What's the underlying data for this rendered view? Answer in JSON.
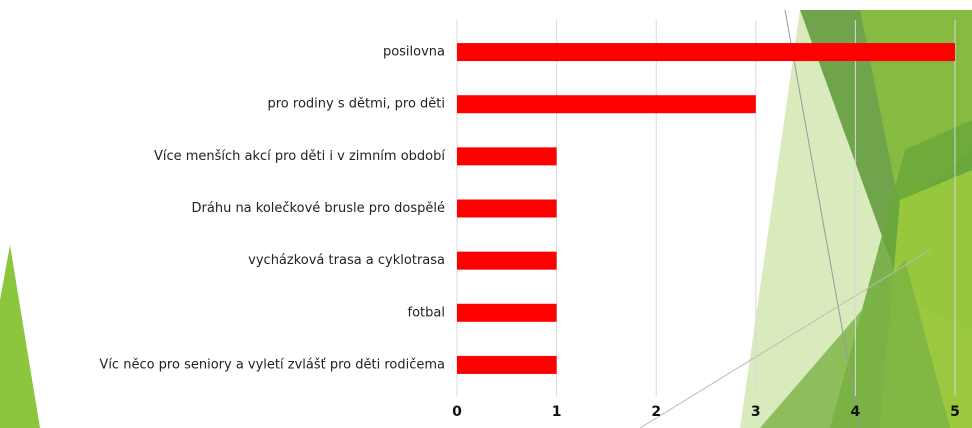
{
  "chart_data": {
    "type": "bar",
    "orientation": "horizontal",
    "categories": [
      "posilovna",
      "pro rodiny s dětmi, pro děti",
      "Více menších akcí pro děti i v zimním období",
      "Dráhu na kolečkové brusle pro dospělé",
      "vycházková trasa a cyklotrasa",
      "fotbal",
      "Víc něco pro seniory a vyletí zvlášť pro děti rodičema"
    ],
    "values": [
      5,
      3,
      1,
      1,
      1,
      1,
      1
    ],
    "color": "#ff0000",
    "xlim": [
      0,
      5
    ],
    "xticks": [
      0,
      1,
      2,
      3,
      4,
      5
    ],
    "grid": true
  }
}
